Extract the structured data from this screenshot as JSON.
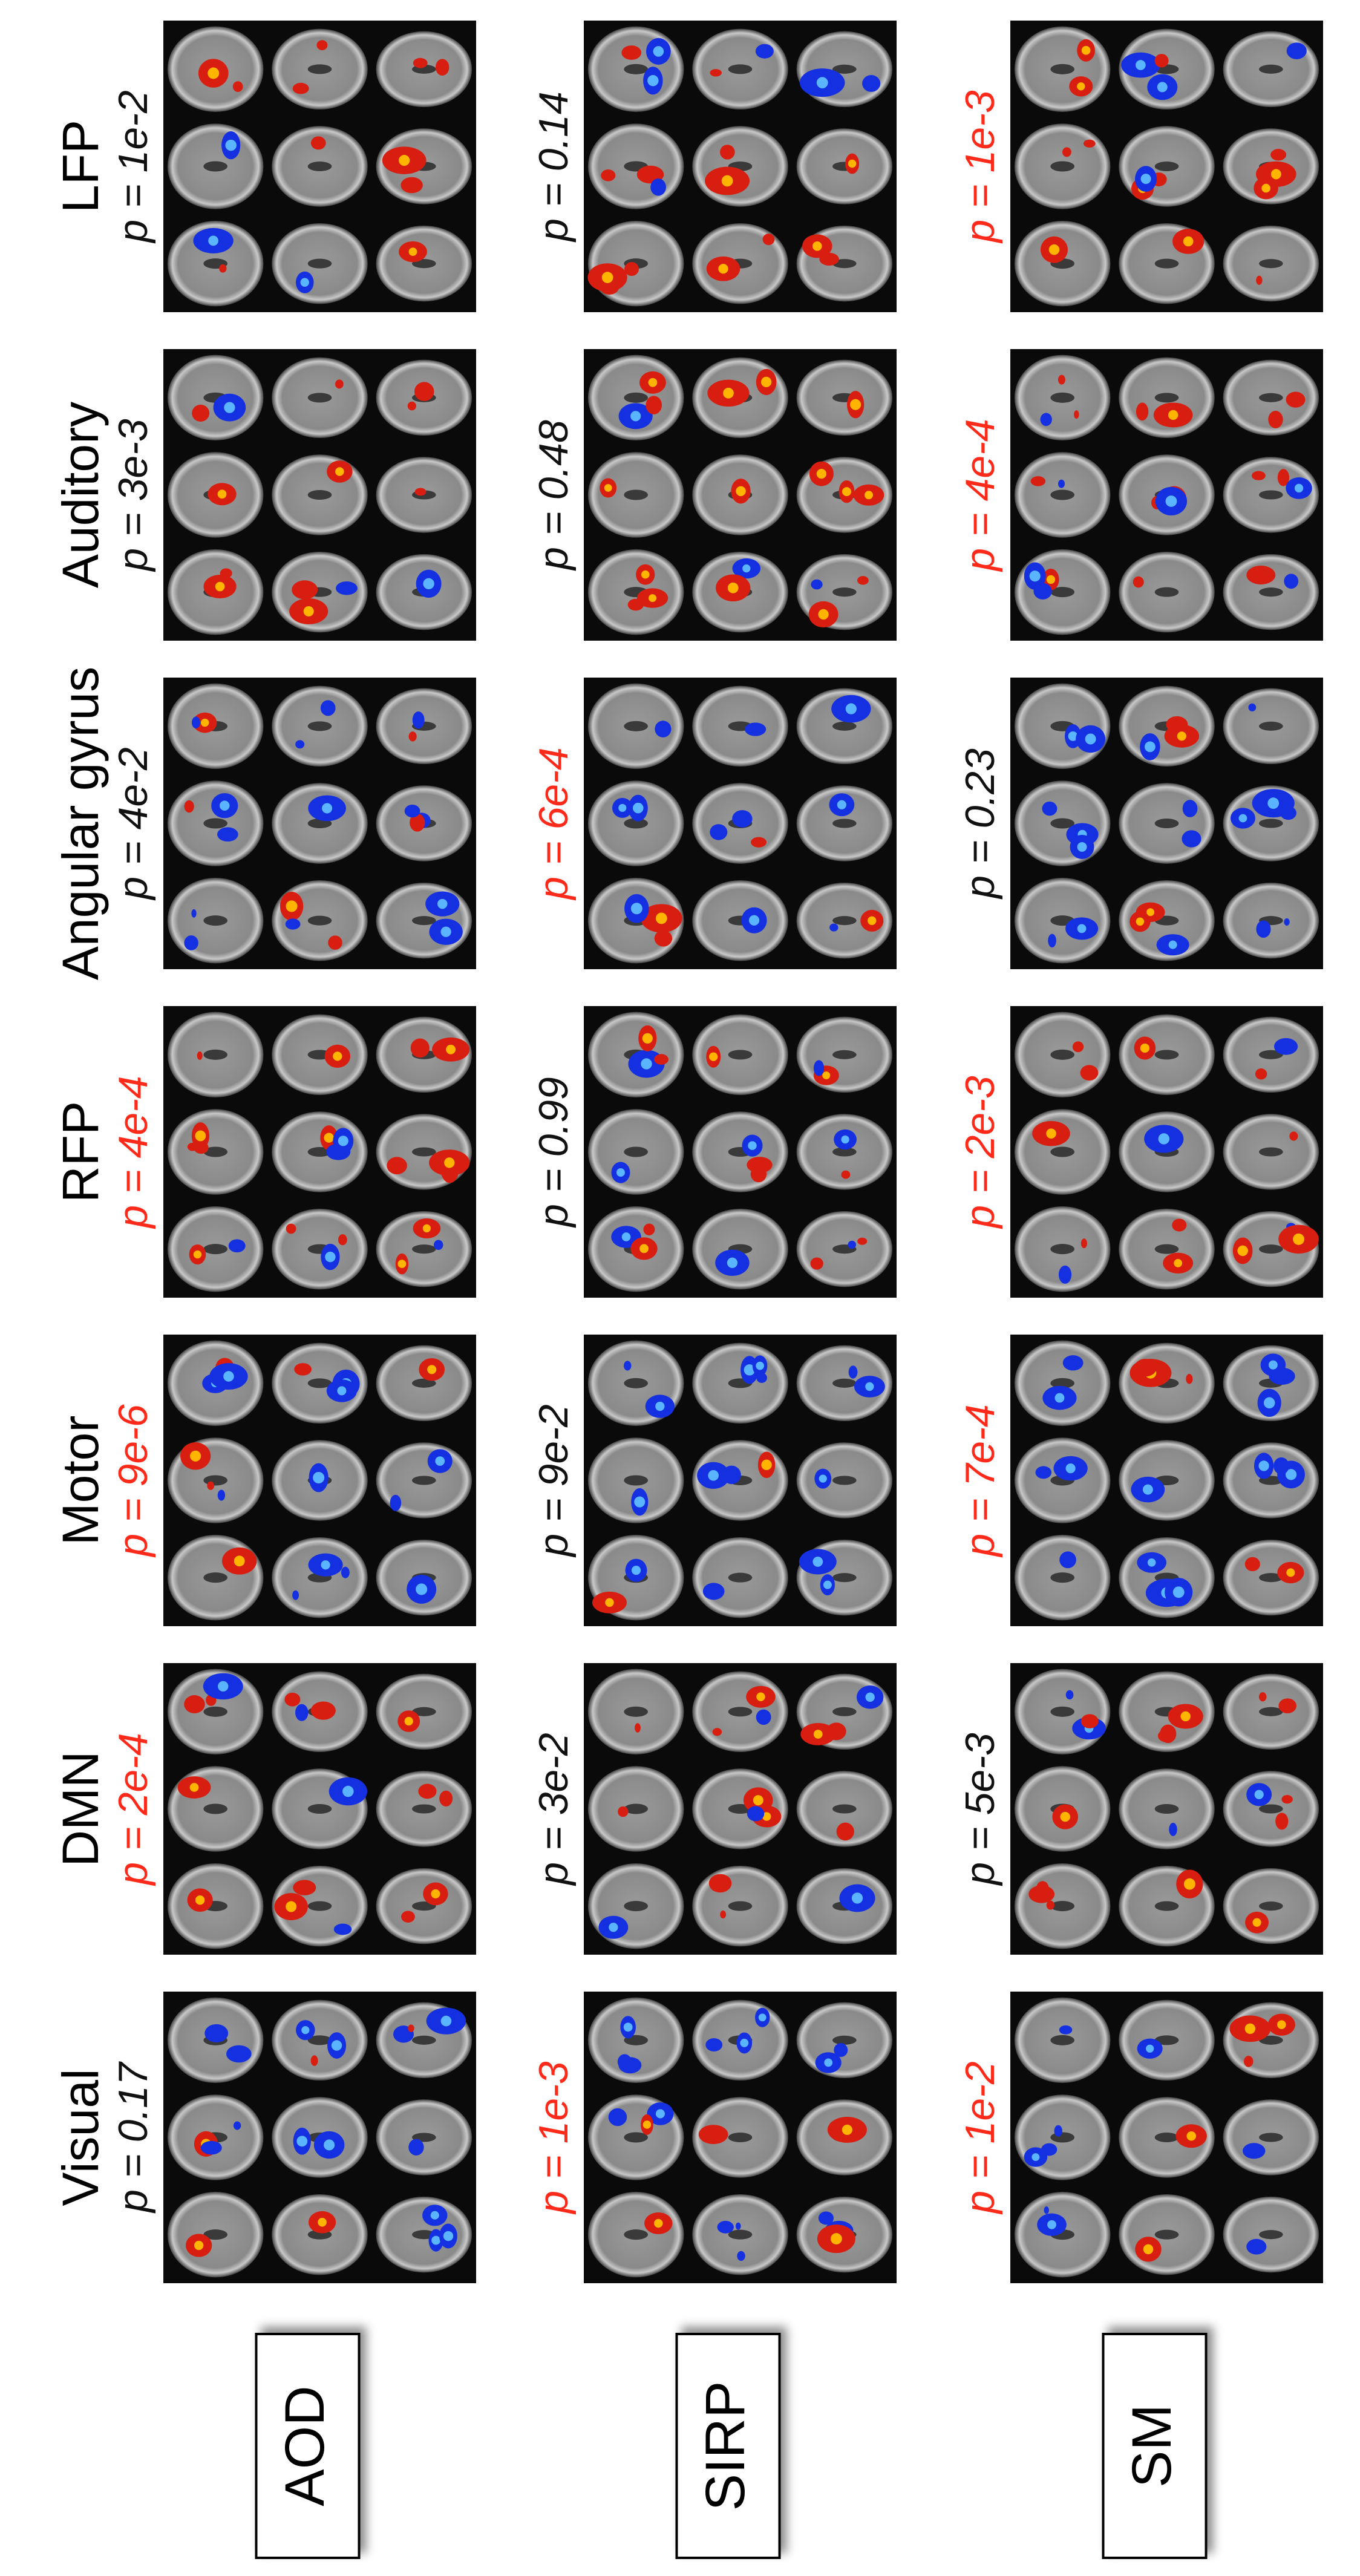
{
  "columns": [
    "Visual",
    "DMN",
    "Motor",
    "RFP",
    "Angular gyrus",
    "Auditory",
    "LFP"
  ],
  "rows": [
    {
      "task": "AOD",
      "pvalues": [
        {
          "text": "p = 0.17",
          "color": "#111111"
        },
        {
          "text": "p = 2e-4",
          "color": "#ff2a1a"
        },
        {
          "text": "p = 9e-6",
          "color": "#ff2a1a"
        },
        {
          "text": "p = 4e-4",
          "color": "#ff2a1a"
        },
        {
          "text": "p = 4e-2",
          "color": "#111111"
        },
        {
          "text": "p = 3e-3",
          "color": "#111111"
        },
        {
          "text": "p = 1e-2",
          "color": "#111111"
        }
      ]
    },
    {
      "task": "SIRP",
      "pvalues": [
        {
          "text": "p = 1e-3",
          "color": "#ff2a1a"
        },
        {
          "text": "p = 3e-2",
          "color": "#111111"
        },
        {
          "text": "p = 9e-2",
          "color": "#111111"
        },
        {
          "text": "p = 0.99",
          "color": "#111111"
        },
        {
          "text": "p = 6e-4",
          "color": "#ff2a1a"
        },
        {
          "text": "p = 0.48",
          "color": "#111111"
        },
        {
          "text": "p = 0.14",
          "color": "#111111"
        }
      ]
    },
    {
      "task": "SM",
      "pvalues": [
        {
          "text": "p = 1e-2",
          "color": "#ff2a1a"
        },
        {
          "text": "p = 5e-3",
          "color": "#111111"
        },
        {
          "text": "p = 7e-4",
          "color": "#ff2a1a"
        },
        {
          "text": "p = 2e-3",
          "color": "#ff2a1a"
        },
        {
          "text": "p = 0.23",
          "color": "#111111"
        },
        {
          "text": "p = 4e-4",
          "color": "#ff2a1a"
        },
        {
          "text": "p = 1e-3",
          "color": "#ff2a1a"
        }
      ]
    }
  ]
}
